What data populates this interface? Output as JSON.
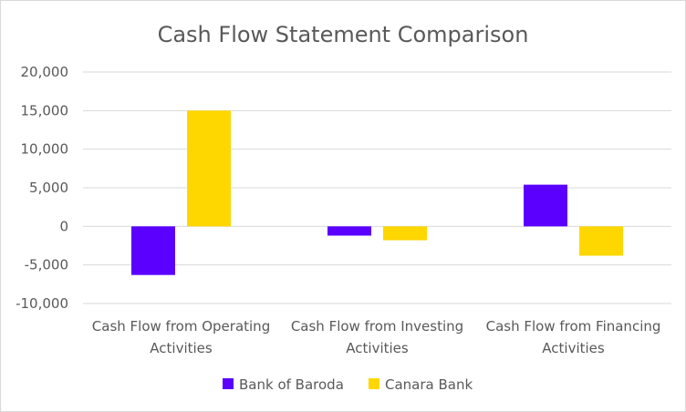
{
  "chart_data": {
    "type": "bar",
    "title": "Cash Flow Statement Comparison",
    "categories": [
      [
        "Cash Flow from Operating",
        "Activities"
      ],
      [
        "Cash Flow from Investing",
        "Activities"
      ],
      [
        "Cash Flow from Financing",
        "Activities"
      ]
    ],
    "series": [
      {
        "name": "Bank of Baroda",
        "color": "#5b00ff",
        "values": [
          -6300,
          -1200,
          5400
        ]
      },
      {
        "name": "Canara Bank",
        "color": "#ffd700",
        "values": [
          15000,
          -1800,
          -3800
        ]
      }
    ],
    "ylim": [
      -10000,
      20000
    ],
    "yticks": [
      20000,
      15000,
      10000,
      5000,
      0,
      -5000,
      -10000
    ],
    "ytick_labels": [
      "20,000",
      "15,000",
      "10,000",
      "5,000",
      "0",
      "-5,000",
      "-10,000"
    ],
    "grid": true,
    "legend_position": "bottom"
  }
}
